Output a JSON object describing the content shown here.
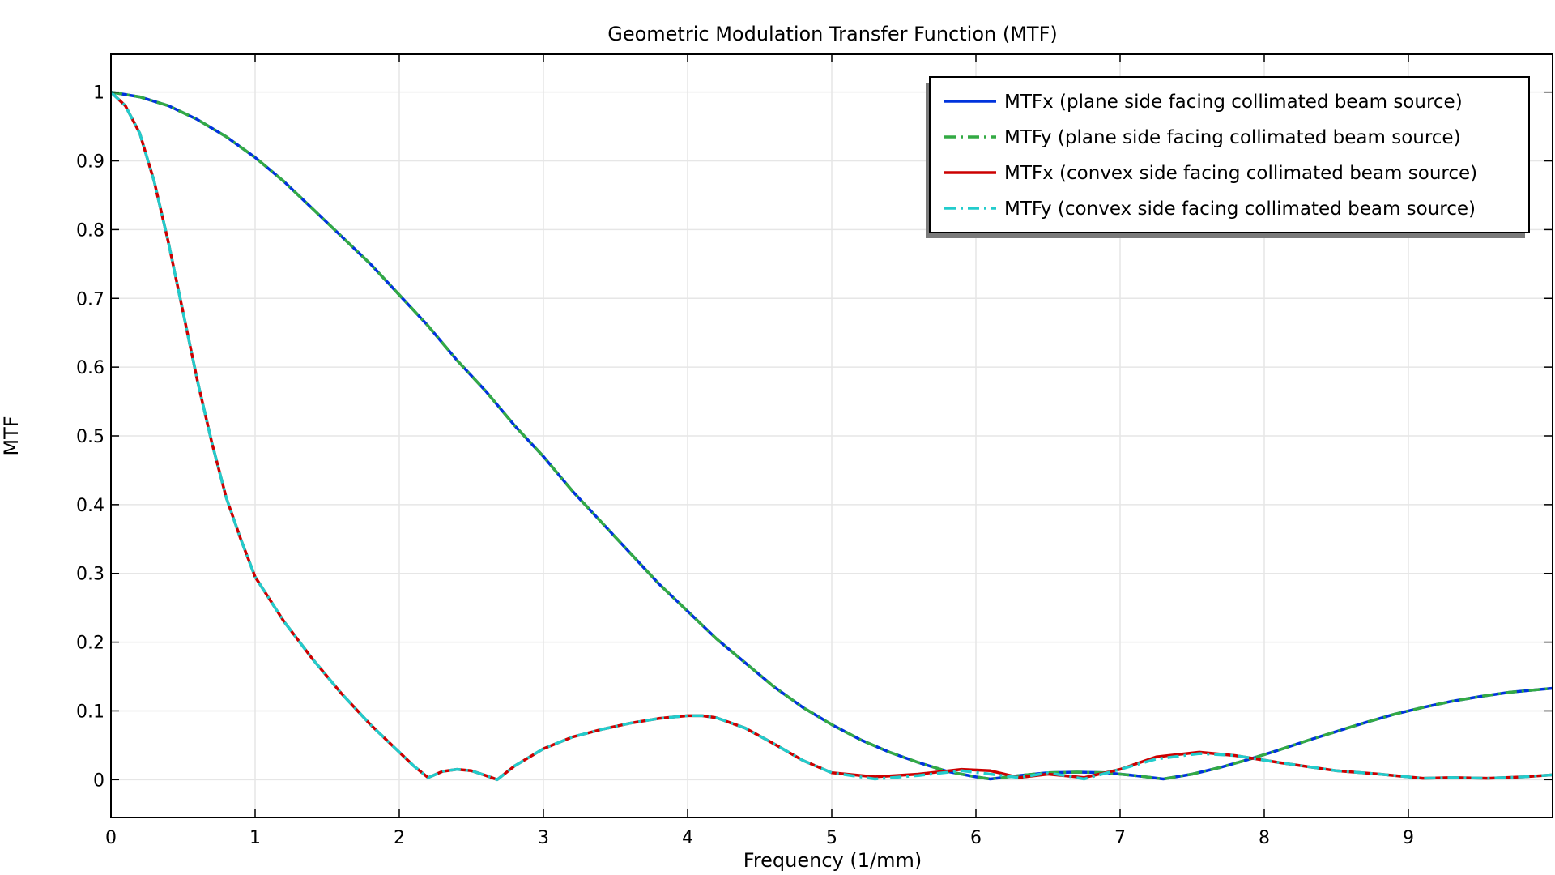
{
  "chart_data": {
    "type": "line",
    "title": "Geometric Modulation Transfer Function (MTF)",
    "xlabel": "Frequency (1/mm)",
    "ylabel": "MTF",
    "xlim": [
      0,
      10
    ],
    "ylim": [
      -0.055,
      1.055
    ],
    "xticks": [
      "0",
      "1",
      "2",
      "3",
      "4",
      "5",
      "6",
      "7",
      "8",
      "9"
    ],
    "xtick_values": [
      0,
      1,
      2,
      3,
      4,
      5,
      6,
      7,
      8,
      9
    ],
    "yticks": [
      "0",
      "0.1",
      "0.2",
      "0.3",
      "0.4",
      "0.5",
      "0.6",
      "0.7",
      "0.8",
      "0.9",
      "1"
    ],
    "ytick_values": [
      0,
      0.1,
      0.2,
      0.3,
      0.4,
      0.5,
      0.6,
      0.7,
      0.8,
      0.9,
      1
    ],
    "grid": true,
    "legend_position": "top-right",
    "series": [
      {
        "name": "MTFx (plane side facing collimated beam source)",
        "color": "#0033dd",
        "style": "solid",
        "x": [
          0,
          0.2,
          0.4,
          0.6,
          0.8,
          1.0,
          1.2,
          1.4,
          1.6,
          1.8,
          2.0,
          2.2,
          2.4,
          2.6,
          2.8,
          3.0,
          3.2,
          3.4,
          3.6,
          3.8,
          4.0,
          4.2,
          4.4,
          4.6,
          4.8,
          5.0,
          5.2,
          5.4,
          5.6,
          5.8,
          6.0,
          6.1,
          6.3,
          6.5,
          6.7,
          6.9,
          7.1,
          7.3,
          7.5,
          7.7,
          7.9,
          8.1,
          8.3,
          8.5,
          8.7,
          8.9,
          9.1,
          9.3,
          9.5,
          9.7,
          10.0
        ],
        "y": [
          1.0,
          0.993,
          0.98,
          0.96,
          0.935,
          0.905,
          0.87,
          0.83,
          0.79,
          0.75,
          0.705,
          0.66,
          0.61,
          0.565,
          0.515,
          0.47,
          0.42,
          0.375,
          0.33,
          0.285,
          0.245,
          0.205,
          0.17,
          0.135,
          0.105,
          0.08,
          0.058,
          0.04,
          0.025,
          0.012,
          0.004,
          0.001,
          0.006,
          0.01,
          0.011,
          0.01,
          0.006,
          0.001,
          0.008,
          0.018,
          0.03,
          0.043,
          0.057,
          0.07,
          0.083,
          0.095,
          0.105,
          0.114,
          0.121,
          0.127,
          0.133
        ]
      },
      {
        "name": "MTFy (plane side facing collimated beam source)",
        "color": "#33aa44",
        "style": "dash-dot",
        "x": [
          0,
          0.2,
          0.4,
          0.6,
          0.8,
          1.0,
          1.2,
          1.4,
          1.6,
          1.8,
          2.0,
          2.2,
          2.4,
          2.6,
          2.8,
          3.0,
          3.2,
          3.4,
          3.6,
          3.8,
          4.0,
          4.2,
          4.4,
          4.6,
          4.8,
          5.0,
          5.2,
          5.4,
          5.6,
          5.8,
          6.0,
          6.1,
          6.3,
          6.5,
          6.7,
          6.9,
          7.1,
          7.3,
          7.5,
          7.7,
          7.9,
          8.1,
          8.3,
          8.5,
          8.7,
          8.9,
          9.1,
          9.3,
          9.5,
          9.7,
          10.0
        ],
        "y": [
          1.0,
          0.993,
          0.98,
          0.96,
          0.935,
          0.905,
          0.87,
          0.83,
          0.79,
          0.75,
          0.705,
          0.66,
          0.61,
          0.565,
          0.515,
          0.47,
          0.42,
          0.375,
          0.33,
          0.285,
          0.245,
          0.205,
          0.17,
          0.135,
          0.105,
          0.08,
          0.058,
          0.04,
          0.025,
          0.012,
          0.004,
          0.001,
          0.006,
          0.01,
          0.011,
          0.01,
          0.006,
          0.001,
          0.008,
          0.018,
          0.03,
          0.043,
          0.057,
          0.07,
          0.083,
          0.095,
          0.105,
          0.114,
          0.121,
          0.127,
          0.133
        ]
      },
      {
        "name": "MTFx (convex side facing collimated beam source)",
        "color": "#cc0000",
        "style": "solid",
        "x": [
          0,
          0.1,
          0.2,
          0.3,
          0.4,
          0.5,
          0.6,
          0.7,
          0.8,
          0.9,
          1.0,
          1.2,
          1.4,
          1.6,
          1.8,
          2.0,
          2.1,
          2.2,
          2.3,
          2.4,
          2.5,
          2.6,
          2.68,
          2.8,
          3.0,
          3.2,
          3.4,
          3.6,
          3.8,
          4.0,
          4.1,
          4.2,
          4.4,
          4.6,
          4.8,
          5.0,
          5.3,
          5.6,
          5.9,
          6.1,
          6.3,
          6.5,
          6.75,
          7.0,
          7.25,
          7.55,
          7.8,
          8.1,
          8.5,
          8.8,
          9.1,
          9.3,
          9.55,
          9.8,
          10.0
        ],
        "y": [
          1.0,
          0.98,
          0.94,
          0.87,
          0.78,
          0.68,
          0.58,
          0.49,
          0.41,
          0.35,
          0.295,
          0.23,
          0.175,
          0.125,
          0.08,
          0.04,
          0.02,
          0.003,
          0.012,
          0.015,
          0.013,
          0.006,
          0.0,
          0.02,
          0.045,
          0.062,
          0.073,
          0.082,
          0.089,
          0.093,
          0.093,
          0.09,
          0.075,
          0.052,
          0.028,
          0.01,
          0.004,
          0.008,
          0.015,
          0.013,
          0.003,
          0.008,
          0.003,
          0.015,
          0.033,
          0.04,
          0.035,
          0.025,
          0.013,
          0.008,
          0.002,
          0.003,
          0.002,
          0.004,
          0.007
        ]
      },
      {
        "name": "MTFy (convex side facing collimated beam source)",
        "color": "#22cccc",
        "style": "dash-dot",
        "x": [
          0,
          0.1,
          0.2,
          0.3,
          0.4,
          0.5,
          0.6,
          0.7,
          0.8,
          0.9,
          1.0,
          1.2,
          1.4,
          1.6,
          1.8,
          2.0,
          2.1,
          2.2,
          2.3,
          2.4,
          2.5,
          2.6,
          2.68,
          2.8,
          3.0,
          3.2,
          3.4,
          3.6,
          3.8,
          4.0,
          4.1,
          4.2,
          4.4,
          4.6,
          4.8,
          5.0,
          5.3,
          5.6,
          5.9,
          6.1,
          6.3,
          6.5,
          6.75,
          7.0,
          7.25,
          7.55,
          7.8,
          8.1,
          8.5,
          8.8,
          9.1,
          9.3,
          9.55,
          9.8,
          10.0
        ],
        "y": [
          1.0,
          0.98,
          0.94,
          0.87,
          0.78,
          0.68,
          0.58,
          0.49,
          0.41,
          0.35,
          0.295,
          0.23,
          0.175,
          0.125,
          0.08,
          0.04,
          0.02,
          0.003,
          0.012,
          0.015,
          0.013,
          0.006,
          0.0,
          0.02,
          0.045,
          0.062,
          0.073,
          0.082,
          0.089,
          0.093,
          0.093,
          0.09,
          0.075,
          0.052,
          0.028,
          0.01,
          0.001,
          0.006,
          0.013,
          0.008,
          0.003,
          0.01,
          0.001,
          0.015,
          0.03,
          0.038,
          0.035,
          0.025,
          0.013,
          0.008,
          0.002,
          0.003,
          0.002,
          0.004,
          0.007
        ]
      }
    ]
  }
}
